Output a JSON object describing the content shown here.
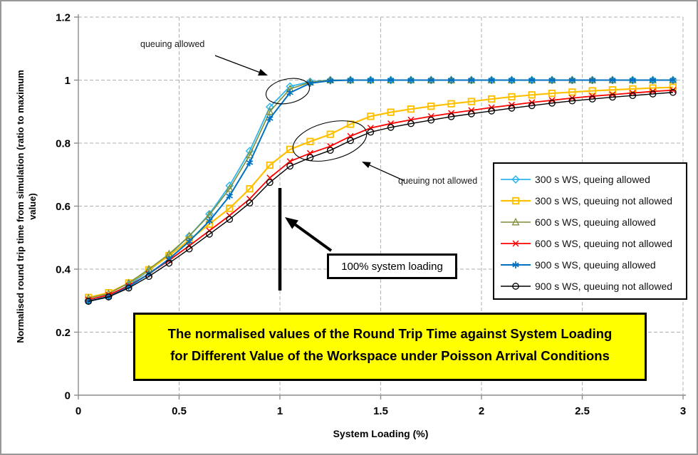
{
  "chart_data": {
    "type": "line",
    "title": "The normalised values of the Round Trip Time against System Loading for Different Value of the Workspace under Poisson Arrival Conditions",
    "title_lines": [
      "The normalised values of the Round Trip Time against System Loading",
      "for Different Value of the Workspace under Poisson Arrival Conditions"
    ],
    "title_box_color": "#FFFF00",
    "xlabel": "System Loading (%)",
    "ylabel": "Normalised round trip time from simulation (ratio to maximum value)",
    "ylabel_lines": [
      "Normalised round trip time from simulation (ratio to maximum",
      "value)"
    ],
    "xlim": [
      0,
      3
    ],
    "ylim": [
      0,
      1.2
    ],
    "grid": true,
    "legend_position": "right-inside",
    "x_ticks": [
      0,
      0.5,
      1,
      1.5,
      2,
      2.5,
      3
    ],
    "x_tick_labels": [
      "0",
      "0.5",
      "1",
      "1.5",
      "2",
      "2.5",
      "3"
    ],
    "y_ticks": [
      0,
      0.2,
      0.4,
      0.6,
      0.8,
      1,
      1.2
    ],
    "y_tick_labels": [
      "0",
      "0.2",
      "0.4",
      "0.6",
      "0.8",
      "1",
      "1.2"
    ],
    "x": [
      0.05,
      0.15,
      0.25,
      0.35,
      0.45,
      0.55,
      0.65,
      0.75,
      0.85,
      0.95,
      1.05,
      1.15,
      1.25,
      1.35,
      1.45,
      1.55,
      1.65,
      1.75,
      1.85,
      1.95,
      2.05,
      2.15,
      2.25,
      2.35,
      2.45,
      2.55,
      2.65,
      2.75,
      2.85,
      2.95
    ],
    "series": [
      {
        "name": "300 s WS, queing allowed",
        "color": "#2EB6EA",
        "marker": "diamond",
        "line_width": 1.8,
        "values": [
          0.3,
          0.315,
          0.35,
          0.395,
          0.445,
          0.505,
          0.575,
          0.665,
          0.775,
          0.915,
          0.98,
          0.995,
          1.0,
          1.0,
          1.0,
          1.0,
          1.0,
          1.0,
          1.0,
          1.0,
          1.0,
          1.0,
          1.0,
          1.0,
          1.0,
          1.0,
          1.0,
          1.0,
          1.0,
          1.0
        ]
      },
      {
        "name": "300 s WS, queuing not allowed",
        "color": "#FFC000",
        "marker": "square",
        "line_width": 2.2,
        "values": [
          0.31,
          0.325,
          0.356,
          0.398,
          0.443,
          0.492,
          0.543,
          0.593,
          0.655,
          0.73,
          0.78,
          0.805,
          0.828,
          0.86,
          0.885,
          0.898,
          0.908,
          0.917,
          0.925,
          0.932,
          0.94,
          0.947,
          0.953,
          0.958,
          0.962,
          0.966,
          0.969,
          0.972,
          0.975,
          0.977
        ]
      },
      {
        "name": "600 s WS, queuing allowed",
        "color": "#7F8F39",
        "marker": "triangle",
        "line_width": 1.6,
        "values": [
          0.308,
          0.322,
          0.356,
          0.4,
          0.448,
          0.505,
          0.572,
          0.655,
          0.762,
          0.9,
          0.972,
          0.993,
          1.0,
          1.0,
          1.0,
          1.0,
          1.0,
          1.0,
          1.0,
          1.0,
          1.0,
          1.0,
          1.0,
          1.0,
          1.0,
          1.0,
          1.0,
          1.0,
          1.0,
          1.0
        ]
      },
      {
        "name": "600 s WS, queuing not allowed",
        "color": "#FF0000",
        "marker": "x",
        "line_width": 1.8,
        "values": [
          0.303,
          0.318,
          0.347,
          0.385,
          0.428,
          0.474,
          0.522,
          0.57,
          0.623,
          0.69,
          0.742,
          0.768,
          0.79,
          0.822,
          0.848,
          0.862,
          0.874,
          0.885,
          0.895,
          0.904,
          0.913,
          0.921,
          0.929,
          0.936,
          0.943,
          0.949,
          0.954,
          0.959,
          0.964,
          0.968
        ]
      },
      {
        "name": "900 s WS, queuing allowed",
        "color": "#0070C0",
        "marker": "asterisk",
        "line_width": 2.0,
        "values": [
          0.298,
          0.312,
          0.344,
          0.385,
          0.432,
          0.488,
          0.553,
          0.632,
          0.738,
          0.878,
          0.96,
          0.99,
          0.998,
          1.0,
          1.0,
          1.0,
          1.0,
          1.0,
          1.0,
          1.0,
          1.0,
          1.0,
          1.0,
          1.0,
          1.0,
          1.0,
          1.0,
          1.0,
          1.0,
          1.0
        ]
      },
      {
        "name": "900 s WS, queuing not allowed",
        "color": "#000000",
        "marker": "circle",
        "line_width": 1.4,
        "values": [
          0.298,
          0.312,
          0.34,
          0.377,
          0.419,
          0.464,
          0.511,
          0.558,
          0.61,
          0.675,
          0.727,
          0.754,
          0.777,
          0.808,
          0.835,
          0.85,
          0.862,
          0.873,
          0.884,
          0.893,
          0.902,
          0.911,
          0.919,
          0.927,
          0.934,
          0.94,
          0.946,
          0.951,
          0.956,
          0.961
        ]
      }
    ],
    "annotations": {
      "queuing_allowed_label": "queuing allowed",
      "queuing_not_allowed_label": "queuing not allowed",
      "loading_line_label": "100% system loading"
    }
  }
}
